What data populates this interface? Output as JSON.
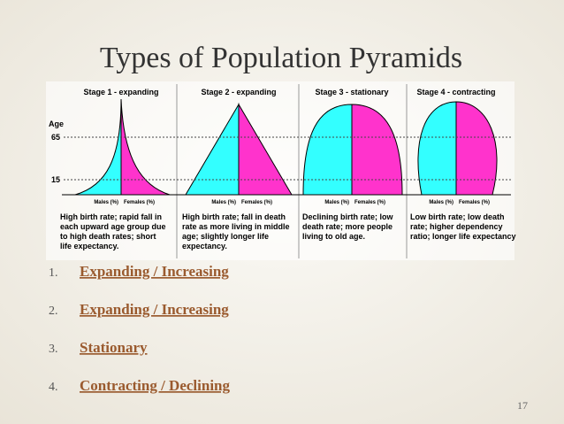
{
  "title": "Types of Population Pyramids",
  "diagram": {
    "axis_label": "Age",
    "age_marks": [
      "65",
      "15"
    ],
    "stages": [
      {
        "title": "Stage 1 - expanding",
        "males_label": "Males (%)",
        "females_label": "Females (%)",
        "description": [
          "High birth rate; rapid fall in",
          "each upward age group due",
          "to high death rates; short",
          "life expectancy."
        ]
      },
      {
        "title": "Stage 2 - expanding",
        "males_label": "Males (%)",
        "females_label": "Females (%)",
        "description": [
          "High birth rate; fall in death",
          "rate as more living in middle",
          "age; slightly longer life",
          "expectancy."
        ]
      },
      {
        "title": "Stage 3 - stationary",
        "males_label": "Males (%)",
        "females_label": "Females (%)",
        "description": [
          "Declining birth rate; low",
          "death rate; more people",
          "living to old age."
        ]
      },
      {
        "title": "Stage 4 - contracting",
        "males_label": "Males (%)",
        "females_label": "Females (%)",
        "description": [
          "Low birth rate; low death",
          "rate; higher dependency",
          "ratio; longer life expectancy"
        ]
      }
    ]
  },
  "list": [
    {
      "number": "1.",
      "text": "Expanding / Increasing"
    },
    {
      "number": "2.",
      "text": "Expanding / Increasing"
    },
    {
      "number": "3.",
      "text": "Stationary"
    },
    {
      "number": "4.",
      "text": "Contracting / Declining"
    }
  ],
  "page_number": "17"
}
